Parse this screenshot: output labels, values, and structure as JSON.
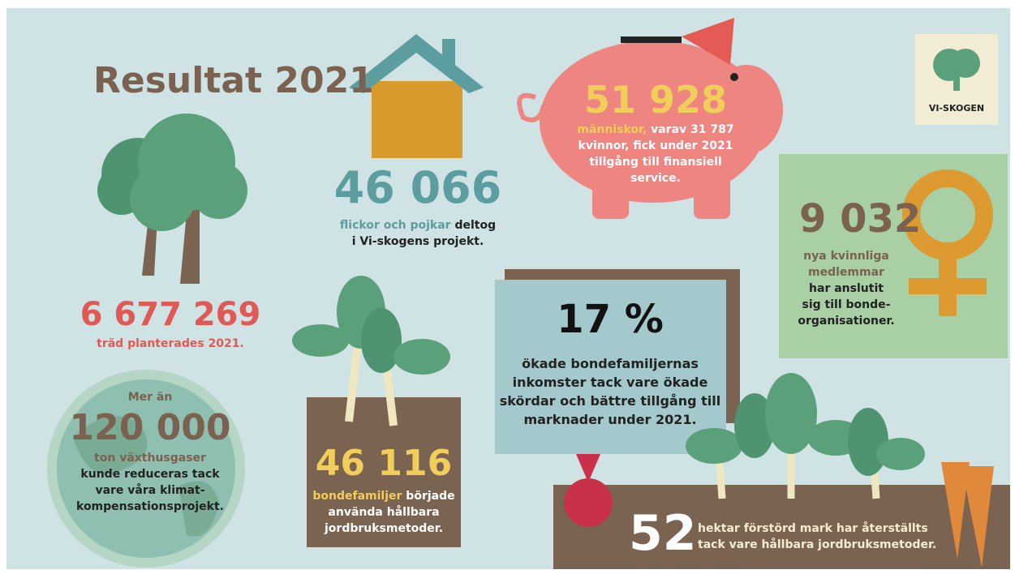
{
  "title": "Resultat 2021",
  "logo": "VI-SKOGEN",
  "trees": {
    "number": "6 677 269",
    "caption": "träd planterades 2021."
  },
  "children": {
    "number": "46 066",
    "highlight": "flickor och pojkar",
    "lines": [
      "deltog",
      "i Vi-skogens projekt."
    ]
  },
  "finance": {
    "number": "51 928",
    "highlight": "människor,",
    "lines": [
      "varav 31 787",
      "kvinnor, fick under 2021",
      "tillgång till finansiell",
      "service."
    ]
  },
  "women": {
    "number": "9 032",
    "highlight": [
      "nya kvinnliga",
      "medlemmar"
    ],
    "lines": [
      "har anslutit",
      "sig till bonde-",
      "organisationer."
    ]
  },
  "income": {
    "number": "17 %",
    "lines": [
      "ökade bondefamiljernas",
      "inkomster tack vare ökade",
      "skördar och bättre tillgång till",
      "marknader under 2021."
    ]
  },
  "emissions": {
    "prefix": "Mer än",
    "number": "120 000",
    "highlight": "ton växthusgaser",
    "lines": [
      "kunde reduceras tack",
      "vare våra klimat-",
      "kompensationsprojekt."
    ]
  },
  "farming": {
    "number": "46 116",
    "highlight": "bondefamiljer",
    "lines": [
      "började",
      "använda hållbara",
      "jordbruksmetoder."
    ]
  },
  "land": {
    "number": "52",
    "lines": [
      "hektar förstörd mark har återställts",
      "tack vare hållbara jordbruksmetoder."
    ]
  }
}
